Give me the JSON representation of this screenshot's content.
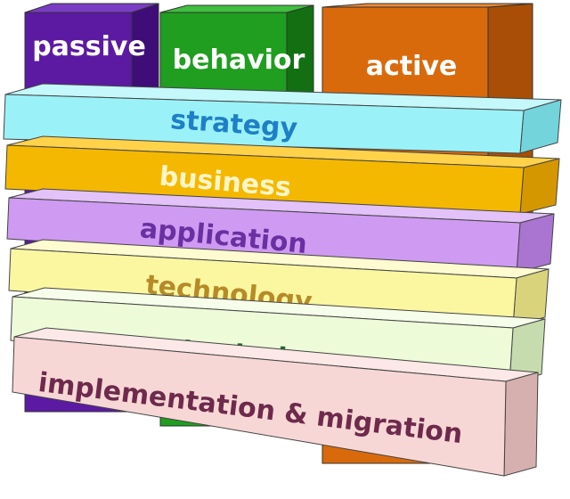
{
  "columns": [
    {
      "label": "passive",
      "front": "#5c1aa3",
      "side": "#3f0d78",
      "top": "#7a3cc4"
    },
    {
      "label": "behavior",
      "front": "#1f9e1f",
      "side": "#127012",
      "top": "#3fbf3f"
    },
    {
      "label": "active",
      "front": "#d96a0c",
      "side": "#a84e06",
      "top": "#eb8a35"
    }
  ],
  "layers": [
    {
      "label": "strategy",
      "front": "#9af2f8",
      "side": "#73d4dc",
      "top": "#c4f8fb",
      "text_color": "#1f7fc6"
    },
    {
      "label": "business",
      "front": "#f5b800",
      "side": "#d49700",
      "top": "#ffd24a",
      "text_color": "#fff6c8"
    },
    {
      "label": "application",
      "front": "#cf9af2",
      "side": "#a975d1",
      "top": "#e2c2f8",
      "text_color": "#6a2fa0"
    },
    {
      "label": "technology",
      "front": "#fbf7a1",
      "side": "#d9d47c",
      "top": "#fdfbcf",
      "text_color": "#b68a28"
    },
    {
      "label": "physical",
      "front": "#eefbd8",
      "side": "#c6dcae",
      "top": "#f6fdea",
      "text_color": "#1f6b2c"
    },
    {
      "label": "implementation & migration",
      "front": "#f7d7d5",
      "side": "#d6b0ae",
      "top": "#fbe8e7",
      "text_color": "#6d2a4c"
    }
  ]
}
